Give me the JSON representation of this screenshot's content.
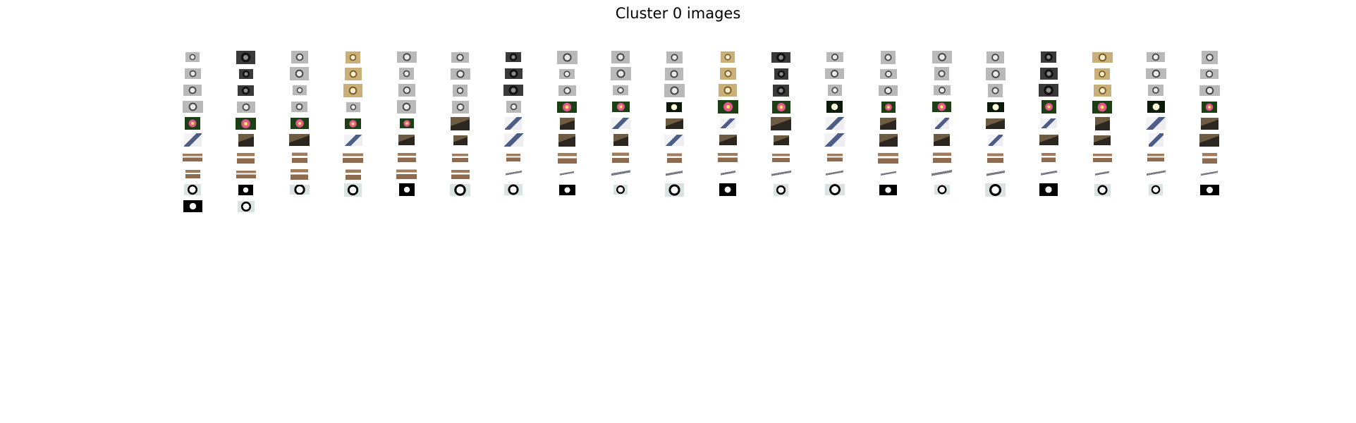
{
  "figure": {
    "title": "Cluster 0 images",
    "columns_per_row": 20,
    "rows": [
      {
        "subject": "watch",
        "count": 20
      },
      {
        "subject": "watch",
        "count": 20
      },
      {
        "subject": "watch",
        "count": 20
      },
      {
        "subject": "watch-flower",
        "count": 20
      },
      {
        "subject": "flower-wheelchair",
        "count": 20
      },
      {
        "subject": "cat-wheelchair",
        "count": 20
      },
      {
        "subject": "chair",
        "count": 20
      },
      {
        "subject": "chair-wrench",
        "count": 20
      },
      {
        "subject": "yinyang",
        "count": 20
      },
      {
        "subject": "yinyang",
        "count": 2
      }
    ]
  }
}
